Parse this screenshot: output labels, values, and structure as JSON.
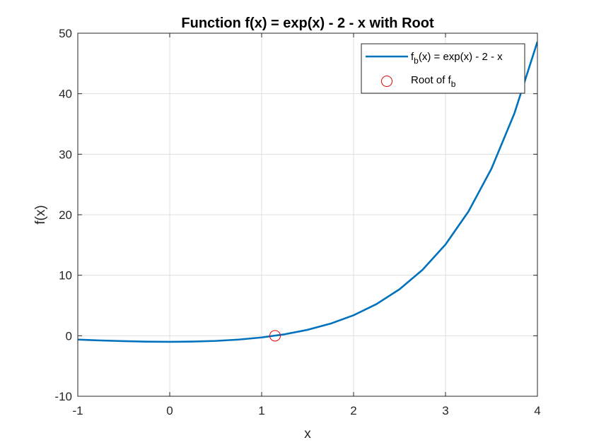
{
  "chart_data": {
    "type": "line",
    "title": "Function f(x) = exp(x) - 2 - x with Root",
    "xlabel": "x",
    "ylabel": "f(x)",
    "xlim": [
      -1,
      4
    ],
    "ylim": [
      -10,
      50
    ],
    "xticks": [
      -1,
      0,
      1,
      2,
      3,
      4
    ],
    "yticks": [
      -10,
      0,
      10,
      20,
      30,
      40,
      50
    ],
    "grid": true,
    "legend_position": "top-right",
    "series": [
      {
        "name": "f_b(x) = exp(x) - 2 - x",
        "kind": "line",
        "color": "#0072BD",
        "x": [
          -1,
          -0.75,
          -0.5,
          -0.25,
          0,
          0.25,
          0.5,
          0.75,
          1,
          1.25,
          1.5,
          1.75,
          2,
          2.25,
          2.5,
          2.75,
          3,
          3.25,
          3.5,
          3.75,
          4
        ],
        "y": [
          -0.632,
          -0.778,
          -0.893,
          -0.971,
          -1.0,
          -0.966,
          -0.851,
          -0.633,
          -0.282,
          0.24,
          0.982,
          2.005,
          3.389,
          5.238,
          7.682,
          10.893,
          15.086,
          20.541,
          27.615,
          36.771,
          48.598
        ]
      },
      {
        "name": "Root of f_b",
        "kind": "marker",
        "color": "#D95319",
        "x": [
          1.146
        ],
        "y": [
          0
        ]
      }
    ],
    "legend": [
      {
        "prefix": "f",
        "sub": "b",
        "suffix": "(x) = exp(x) - 2 - x"
      },
      {
        "prefix": "Root of f",
        "sub": "b",
        "suffix": ""
      }
    ]
  }
}
